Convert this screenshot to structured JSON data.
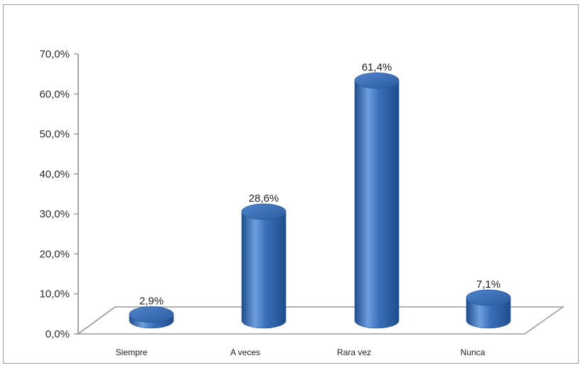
{
  "chart_data": {
    "type": "bar",
    "style": "3d-cylinder",
    "categories": [
      "Siempre",
      "A veces",
      "Rara vez",
      "Nunca"
    ],
    "values": [
      2.9,
      28.6,
      61.4,
      7.1
    ],
    "data_labels": [
      "2,9%",
      "28,6%",
      "61,4%",
      "7,1%"
    ],
    "ylim": [
      0,
      70
    ],
    "yticks": [
      0,
      10,
      20,
      30,
      40,
      50,
      60,
      70
    ],
    "ytick_labels": [
      "0,0%",
      "10,0%",
      "20,0%",
      "30,0%",
      "40,0%",
      "50,0%",
      "60,0%",
      "70,0%"
    ],
    "title": "",
    "xlabel": "",
    "ylabel": "",
    "grid": false,
    "legend": "none",
    "bar_color": "#3a6fb8",
    "bar_highlight": "#6d9ede",
    "bar_dark": "#1f4d8c",
    "floor_color": "#9a9a9a"
  }
}
